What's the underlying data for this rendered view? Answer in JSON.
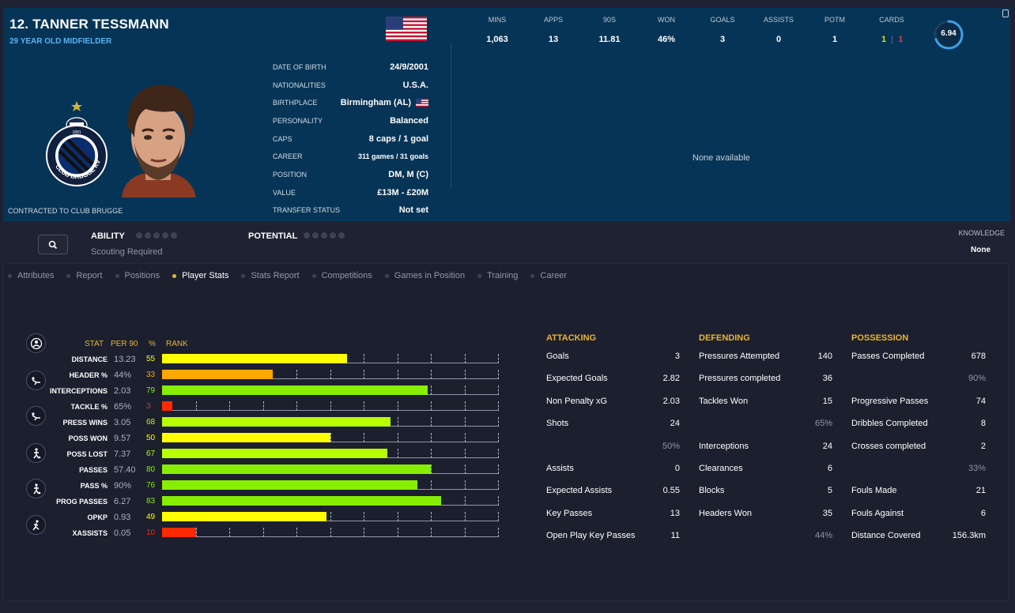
{
  "player": {
    "name": "12. TANNER TESSMANN",
    "subtitle": "29 YEAR OLD MIDFIELDER",
    "contract": "CONTRACTED TO CLUB BRUGGE",
    "club_badge_text": "CLUB BRUGGE KV",
    "club_badge_year": "1891"
  },
  "info": [
    {
      "label": "DATE OF BIRTH",
      "value": "24/9/2001"
    },
    {
      "label": "NATIONALITIES",
      "value": "U.S.A."
    },
    {
      "label": "BIRTHPLACE",
      "value": "Birmingham (AL)"
    },
    {
      "label": "PERSONALITY",
      "value": "Balanced"
    },
    {
      "label": "CAPS",
      "value": "8 caps / 1 goal"
    },
    {
      "label": "CAREER",
      "value": "311 games /   31 goals"
    },
    {
      "label": "POSITION",
      "value": "DM, M (C)"
    },
    {
      "label": "VALUE",
      "value": "£13M - £20M"
    },
    {
      "label": "TRANSFER STATUS",
      "value": "Not set"
    }
  ],
  "summary_stats": [
    {
      "label": "MINS",
      "value": "1,063"
    },
    {
      "label": "APPS",
      "value": "13"
    },
    {
      "label": "90S",
      "value": "11.81"
    },
    {
      "label": "WON",
      "value": "46%"
    },
    {
      "label": "GOALS",
      "value": "3"
    },
    {
      "label": "ASSISTS",
      "value": "0"
    },
    {
      "label": "POTM",
      "value": "1"
    },
    {
      "label": "CARDS",
      "value": ""
    }
  ],
  "cards": {
    "yellow": "1",
    "red": "1"
  },
  "rating": {
    "value": "6.94",
    "fraction": 0.694
  },
  "none_available": "None available",
  "scouting": {
    "ability_label": "ABILITY",
    "potential_label": "POTENTIAL",
    "status": "Scouting Required",
    "knowledge_label": "KNOWLEDGE",
    "knowledge_value": "None"
  },
  "tabs": [
    {
      "label": "Attributes",
      "active": false
    },
    {
      "label": "Report",
      "active": false
    },
    {
      "label": "Positions",
      "active": false
    },
    {
      "label": "Player Stats",
      "active": true
    },
    {
      "label": "Stats Report",
      "active": false
    },
    {
      "label": "Competitions",
      "active": false
    },
    {
      "label": "Games in Position",
      "active": false
    },
    {
      "label": "Training",
      "active": false
    },
    {
      "label": "Career",
      "active": false
    }
  ],
  "chart_headers": {
    "stat": "STAT",
    "per90": "PER 90",
    "pct": "%",
    "rank": "RANK"
  },
  "colors": {
    "yellow": "#ffff00",
    "lime": "#b8ff00",
    "green": "#88ee00",
    "orange": "#ffa800",
    "red": "#ff2a00",
    "accent": "#e8b532"
  },
  "chart_data": {
    "type": "bar",
    "categories": [
      "DISTANCE",
      "HEADER %",
      "INTERCEPTIONS",
      "TACKLE %",
      "PRESS WINS",
      "POSS WON",
      "POSS LOST",
      "PASSES",
      "PASS %",
      "PROG PASSES",
      "OPKP",
      "XASSISTS"
    ],
    "per90": [
      "13.23",
      "44%",
      "2.03",
      "65%",
      "3.05",
      "9.57",
      "7.37",
      "57.40",
      "90%",
      "6.27",
      "0.93",
      "0.05"
    ],
    "values": [
      55,
      33,
      79,
      3,
      68,
      50,
      67,
      80,
      76,
      83,
      49,
      10
    ],
    "xlim": [
      0,
      100
    ],
    "xlabel": "RANK"
  },
  "categories": {
    "attacking": {
      "title": "ATTACKING",
      "rows": [
        {
          "label": "Goals",
          "value": "3"
        },
        {
          "label": "Expected Goals",
          "value": "2.82"
        },
        {
          "label": "Non Penalty xG",
          "value": "2.03"
        },
        {
          "label": "Shots",
          "value": "24"
        },
        {
          "label": "",
          "value": "50%",
          "dim": true
        },
        {
          "label": "Assists",
          "value": "0"
        },
        {
          "label": "Expected Assists",
          "value": "0.55"
        },
        {
          "label": "Key Passes",
          "value": "13"
        },
        {
          "label": "Open Play Key Passes",
          "value": "11"
        }
      ]
    },
    "defending": {
      "title": "DEFENDING",
      "rows": [
        {
          "label": "Pressures Attempted",
          "value": "140"
        },
        {
          "label": "Pressures completed",
          "value": "36"
        },
        {
          "label": "Tackles Won",
          "value": "15"
        },
        {
          "label": "",
          "value": "65%",
          "dim": true
        },
        {
          "label": "Interceptions",
          "value": "24"
        },
        {
          "label": "Clearances",
          "value": "6"
        },
        {
          "label": "Blocks",
          "value": "5"
        },
        {
          "label": "Headers Won",
          "value": "35"
        },
        {
          "label": "",
          "value": "44%",
          "dim": true
        }
      ]
    },
    "possession": {
      "title": "POSSESSION",
      "rows": [
        {
          "label": "Passes Completed",
          "value": "678"
        },
        {
          "label": "",
          "value": "90%",
          "dim": true
        },
        {
          "label": "Progressive Passes",
          "value": "74"
        },
        {
          "label": "Dribbles Completed",
          "value": "8"
        },
        {
          "label": "Crosses completed",
          "value": "2"
        },
        {
          "label": "",
          "value": "33%",
          "dim": true
        },
        {
          "label": "Fouls Made",
          "value": "21"
        },
        {
          "label": "Fouls Against",
          "value": "6"
        },
        {
          "label": "Distance Covered",
          "value": "156.3km"
        }
      ]
    }
  }
}
